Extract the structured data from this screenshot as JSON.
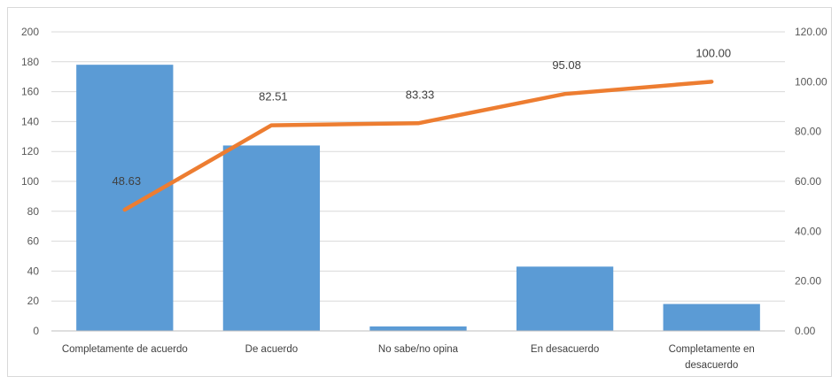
{
  "chart_data": {
    "type": "bar",
    "categories": [
      "Completamente de acuerdo",
      "De acuerdo",
      "No sabe/no opina",
      "En desacuerdo",
      "Completamente en desacuerdo"
    ],
    "category_lines": [
      [
        "Completamente de acuerdo"
      ],
      [
        "De acuerdo"
      ],
      [
        "No sabe/no opina"
      ],
      [
        "En desacuerdo"
      ],
      [
        "Completamente en",
        "desacuerdo"
      ]
    ],
    "series": [
      {
        "type": "bar",
        "axis": "left",
        "color": "#5b9bd5",
        "values": [
          178,
          124,
          3,
          43,
          18
        ]
      },
      {
        "type": "line",
        "axis": "right",
        "color": "#ed7d31",
        "values": [
          48.63,
          82.51,
          83.33,
          95.08,
          100.0
        ],
        "labels": [
          "48.63",
          "82.51",
          "83.33",
          "95.08",
          "100.00"
        ]
      }
    ],
    "y_left": {
      "min": 0,
      "max": 200,
      "step": 20,
      "tick_labels": [
        "0",
        "20",
        "40",
        "60",
        "80",
        "100",
        "120",
        "140",
        "160",
        "180",
        "200"
      ]
    },
    "y_right": {
      "min": 0,
      "max": 120,
      "step": 20,
      "tick_labels": [
        "0.00",
        "20.00",
        "40.00",
        "60.00",
        "80.00",
        "100.00",
        "120.00"
      ]
    },
    "grid": true,
    "title": "",
    "xlabel": "",
    "ylabel": ""
  }
}
